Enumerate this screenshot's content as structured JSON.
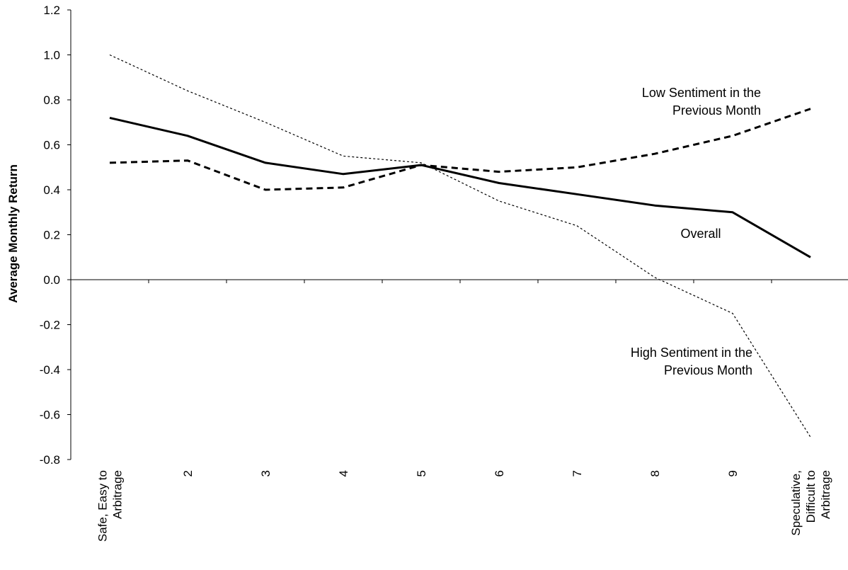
{
  "chart_data": {
    "type": "line",
    "title": "",
    "xlabel": "",
    "ylabel": "Average Monthly Return",
    "ylim": [
      -0.8,
      1.2
    ],
    "yticks": [
      "-0.8",
      "-0.6",
      "-0.4",
      "-0.2",
      "0.0",
      "0.2",
      "0.4",
      "0.6",
      "0.8",
      "1.0",
      "1.2"
    ],
    "categories": [
      [
        "Safe, Easy to",
        "Arbitrage"
      ],
      [
        "2"
      ],
      [
        "3"
      ],
      [
        "4"
      ],
      [
        "5"
      ],
      [
        "6"
      ],
      [
        "7"
      ],
      [
        "8"
      ],
      [
        "9"
      ],
      [
        "Speculative,",
        "Difficult to",
        "Arbitrage"
      ]
    ],
    "grid": false,
    "legend": "none",
    "series": [
      {
        "id": "overall",
        "style": "solid",
        "color": "#000000",
        "values": [
          0.72,
          0.64,
          0.52,
          0.47,
          0.51,
          0.43,
          0.38,
          0.33,
          0.3,
          0.1
        ]
      },
      {
        "id": "low",
        "style": "dashed",
        "color": "#000000",
        "values": [
          0.52,
          0.53,
          0.4,
          0.41,
          0.51,
          0.48,
          0.5,
          0.56,
          0.64,
          0.76
        ]
      },
      {
        "id": "high",
        "style": "dotted",
        "color": "#000000",
        "values": [
          1.0,
          0.84,
          0.7,
          0.55,
          0.52,
          0.35,
          0.24,
          0.01,
          -0.15,
          -0.7
        ]
      }
    ],
    "annotations": [
      {
        "series": "low",
        "lines": [
          "Low Sentiment in the",
          "Previous Month"
        ]
      },
      {
        "series": "overall",
        "lines": [
          "Overall"
        ]
      },
      {
        "series": "high",
        "lines": [
          "High Sentiment in the",
          "Previous Month"
        ]
      }
    ]
  }
}
